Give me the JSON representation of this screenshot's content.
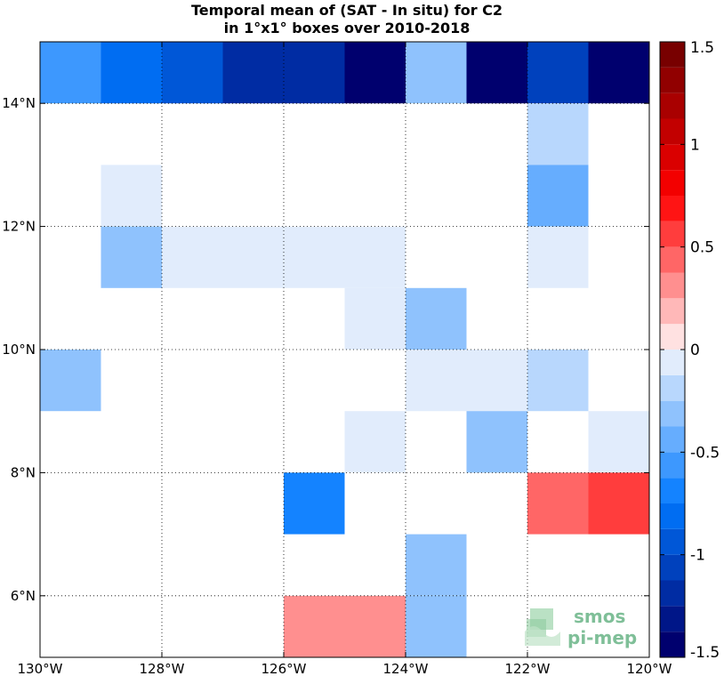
{
  "title_line1": "Temporal mean of (SAT - In situ) for C2",
  "title_line2": "in 1°x1° boxes over 2010-2018",
  "logo_text_1": "smos",
  "logo_text_2": "pi-mep",
  "chart_data": {
    "type": "heatmap",
    "x_ticks": [
      -130,
      -128,
      -126,
      -124,
      -122,
      -120
    ],
    "x_tick_labels": [
      "130°W",
      "128°W",
      "126°W",
      "124°W",
      "122°W",
      "120°W"
    ],
    "y_ticks": [
      6,
      8,
      10,
      12,
      14
    ],
    "y_tick_labels": [
      "6°N",
      "8°N",
      "10°N",
      "12°N",
      "14°N"
    ],
    "xlim": [
      -130,
      -120
    ],
    "ylim": [
      5,
      15
    ],
    "grid": true,
    "colorbar": {
      "range": [
        -1.5,
        1.5
      ],
      "levels": 24,
      "tick_values": [
        1.5,
        1,
        0.5,
        0,
        -0.5,
        -1,
        -1.5
      ],
      "tick_labels": [
        "1.5",
        "1",
        "0.5",
        "0",
        "-0.5",
        "-1",
        "-1.5"
      ]
    },
    "cells": [
      {
        "lon": -130,
        "lat": 14,
        "value": -0.6
      },
      {
        "lon": -129,
        "lat": 14,
        "value": -0.8
      },
      {
        "lon": -128,
        "lat": 14,
        "value": -0.95
      },
      {
        "lon": -127,
        "lat": 14,
        "value": -1.2
      },
      {
        "lon": -126,
        "lat": 14,
        "value": -1.15
      },
      {
        "lon": -125,
        "lat": 14,
        "value": -1.4
      },
      {
        "lon": -124,
        "lat": 14,
        "value": -0.3
      },
      {
        "lon": -123,
        "lat": 14,
        "value": -1.5
      },
      {
        "lon": -122,
        "lat": 14,
        "value": -1.05
      },
      {
        "lon": -121,
        "lat": 14,
        "value": -1.5
      },
      {
        "lon": -122,
        "lat": 13,
        "value": -0.25
      },
      {
        "lon": -129,
        "lat": 12,
        "value": -0.1
      },
      {
        "lon": -122,
        "lat": 12,
        "value": -0.45
      },
      {
        "lon": -129,
        "lat": 11,
        "value": -0.3
      },
      {
        "lon": -128,
        "lat": 11,
        "value": -0.1
      },
      {
        "lon": -127,
        "lat": 11,
        "value": -0.1
      },
      {
        "lon": -126,
        "lat": 11,
        "value": -0.1
      },
      {
        "lon": -125,
        "lat": 11,
        "value": -0.1
      },
      {
        "lon": -122,
        "lat": 11,
        "value": -0.1
      },
      {
        "lon": -125,
        "lat": 10,
        "value": -0.1
      },
      {
        "lon": -124,
        "lat": 10,
        "value": -0.35
      },
      {
        "lon": -130,
        "lat": 9,
        "value": -0.3
      },
      {
        "lon": -124,
        "lat": 9,
        "value": -0.1
      },
      {
        "lon": -123,
        "lat": 9,
        "value": -0.1
      },
      {
        "lon": -122,
        "lat": 9,
        "value": -0.2
      },
      {
        "lon": -125,
        "lat": 8,
        "value": -0.1
      },
      {
        "lon": -123,
        "lat": 8,
        "value": -0.35
      },
      {
        "lon": -121,
        "lat": 8,
        "value": -0.1
      },
      {
        "lon": -126,
        "lat": 7,
        "value": -0.65
      },
      {
        "lon": -122,
        "lat": 7,
        "value": 0.4
      },
      {
        "lon": -121,
        "lat": 7,
        "value": 0.55
      },
      {
        "lon": -124,
        "lat": 6,
        "value": -0.3
      },
      {
        "lon": -126,
        "lat": 5,
        "value": 0.25
      },
      {
        "lon": -125,
        "lat": 5,
        "value": 0.25
      },
      {
        "lon": -124,
        "lat": 5,
        "value": -0.3
      }
    ]
  }
}
